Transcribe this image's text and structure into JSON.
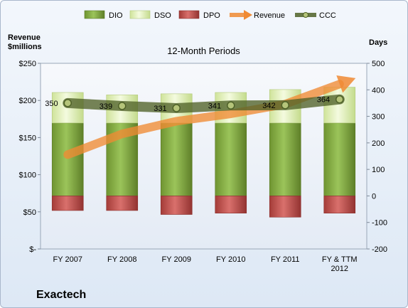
{
  "chart_data": {
    "type": "bar",
    "title": "12-Month Periods",
    "company": "Exactech",
    "categories": [
      "FY 2007",
      "FY 2008",
      "FY 2009",
      "FY 2010",
      "FY 2011",
      "FY & TTM\n2012"
    ],
    "left_axis": {
      "label": "Revenue\n$millions",
      "ylim": [
        0,
        250
      ],
      "ticks": [
        0,
        50,
        100,
        150,
        200,
        250
      ],
      "tick_labels": [
        "$-",
        "$50",
        "$100",
        "$150",
        "$200",
        "$250"
      ]
    },
    "right_axis": {
      "label": "Days",
      "ylim": [
        -200,
        500
      ],
      "ticks": [
        -200,
        -100,
        0,
        100,
        200,
        300,
        400,
        500
      ],
      "tick_labels": [
        "-200",
        "-100",
        "0",
        "100",
        "200",
        "300",
        "400",
        "500"
      ]
    },
    "series": [
      {
        "name": "DIO",
        "axis": "right",
        "kind": "stacked-bar",
        "values": [
          275,
          275,
          275,
          275,
          275,
          275
        ],
        "color": "#7aa33a"
      },
      {
        "name": "DSO",
        "axis": "right",
        "kind": "stacked-bar",
        "values": [
          115,
          106,
          110,
          115,
          126,
          135
        ],
        "color": "#dfeeb7"
      },
      {
        "name": "DPO",
        "axis": "right",
        "kind": "negative-bar",
        "values": [
          -55,
          -55,
          -70,
          -65,
          -80,
          -65
        ],
        "color": "#c0504d"
      },
      {
        "name": "Revenue",
        "axis": "left",
        "kind": "arrow-line",
        "values": [
          127,
          155,
          172,
          182,
          195,
          222
        ],
        "color": "#f08a33"
      },
      {
        "name": "CCC",
        "axis": "right",
        "kind": "line",
        "values": [
          350,
          339,
          331,
          341,
          342,
          364
        ],
        "color": "#4f6228"
      }
    ],
    "data_labels": [
      "350",
      "339",
      "331",
      "341",
      "342",
      "364"
    ],
    "grid": false,
    "legend": "top"
  }
}
